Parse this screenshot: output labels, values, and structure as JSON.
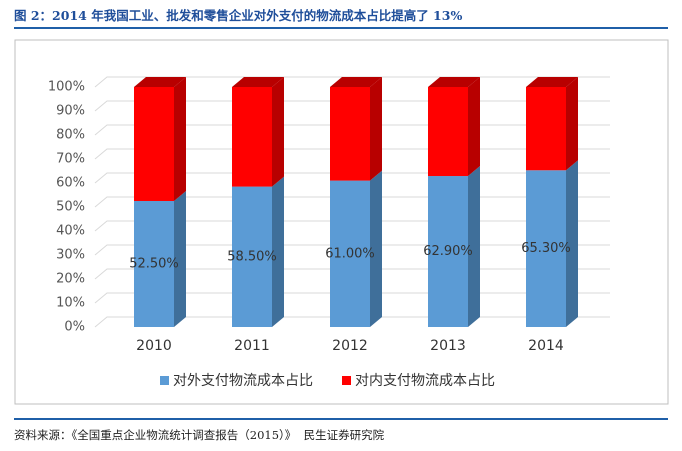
{
  "chart_data": {
    "type": "bar",
    "stacked": true,
    "title": "图 2：2014 年我国工业、批发和零售企业对外支付的物流成本占比提高了 13%",
    "source": "资料来源：《全国重点企业物流统计调查报告（2015）》  民生证券研究院",
    "categories": [
      "2010",
      "2011",
      "2012",
      "2013",
      "2014"
    ],
    "series": [
      {
        "name": "对外支付物流成本占比",
        "color": "#5b9bd5",
        "side_color": "#3f6f9a",
        "values": [
          52.5,
          58.5,
          61.0,
          62.9,
          65.3
        ],
        "value_labels": [
          "52.50%",
          "58.50%",
          "61.00%",
          "62.90%",
          "65.30%"
        ]
      },
      {
        "name": "对内支付物流成本占比",
        "color": "#ff0000",
        "side_color": "#b80000",
        "values": [
          47.5,
          41.5,
          39.0,
          37.1,
          34.7
        ]
      }
    ],
    "ylim": [
      0,
      100
    ],
    "yticks": [
      {
        "value": 0,
        "label": "0%"
      },
      {
        "value": 10,
        "label": "10%"
      },
      {
        "value": 20,
        "label": "20%"
      },
      {
        "value": 30,
        "label": "30%"
      },
      {
        "value": 40,
        "label": "40%"
      },
      {
        "value": 50,
        "label": "50%"
      },
      {
        "value": 60,
        "label": "60%"
      },
      {
        "value": 70,
        "label": "70%"
      },
      {
        "value": 80,
        "label": "80%"
      },
      {
        "value": 90,
        "label": "90%"
      },
      {
        "value": 100,
        "label": "100%"
      }
    ],
    "grid": true,
    "legend": "bottom"
  }
}
